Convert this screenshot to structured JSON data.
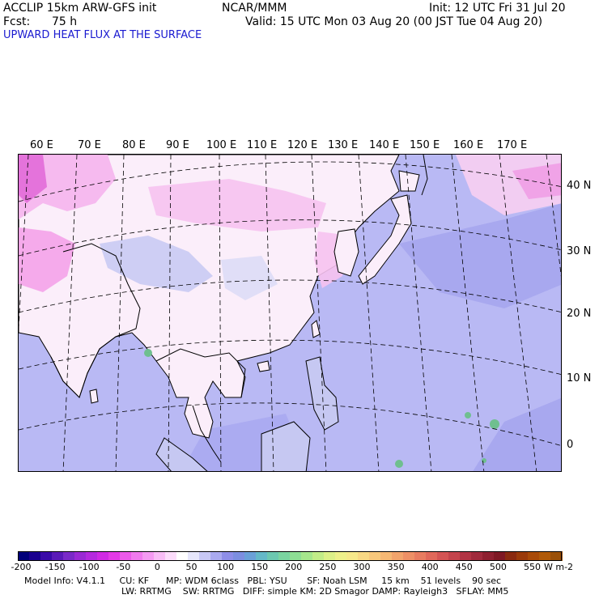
{
  "header": {
    "model": "ACCLIP 15km ARW-GFS init",
    "org": "NCAR/MMM",
    "init": "Init: 12 UTC Fri 31 Jul 20",
    "fcst_label": "Fcst:",
    "fcst_value": "75 h",
    "valid": "Valid: 15 UTC Mon 03 Aug 20 (00 JST Tue 04 Aug 20)",
    "field": "UPWARD HEAT FLUX AT THE SURFACE"
  },
  "map": {
    "longitude_labels": [
      "60 E",
      "70 E",
      "80 E",
      "90 E",
      "100 E",
      "110 E",
      "120 E",
      "130 E",
      "140 E",
      "150 E",
      "160 E",
      "170 E"
    ],
    "latitude_labels": [
      "40 N",
      "30 N",
      "20 N",
      "10 N",
      "0"
    ],
    "colors": {
      "land_white": "#ffffff",
      "land_pink": "#f7c8f0",
      "strong_pink": "#ee66dd",
      "ocean_lavender": "#b9b9f4",
      "ocean_blue": "#8f8fe6",
      "green_spot": "#6fbf8f"
    }
  },
  "colorbar": {
    "tick_labels": [
      "-200",
      "-150",
      "-100",
      "-50",
      "0",
      "50",
      "100",
      "150",
      "200",
      "250",
      "300",
      "350",
      "400",
      "450",
      "500",
      "550"
    ],
    "unit": "W m-2",
    "colors": [
      "#00007a",
      "#1a008f",
      "#3a0aa8",
      "#5a1ab8",
      "#7a2ac8",
      "#9a2ad4",
      "#b52ade",
      "#d02ae4",
      "#e43ae6",
      "#ec5aea",
      "#f07aee",
      "#f49af2",
      "#f8bcf6",
      "#fcdcfb",
      "#ffffff",
      "#e6e6fb",
      "#c8c8f5",
      "#aaaaf0",
      "#8e8ee8",
      "#7c8ee0",
      "#6aa0d8",
      "#64b8c8",
      "#6cc8b0",
      "#7ad4a0",
      "#8ede94",
      "#a6e68c",
      "#c2ec88",
      "#dcf088",
      "#eef08a",
      "#f6e88a",
      "#f8d884",
      "#f8c87c",
      "#f6b874",
      "#f2a46c",
      "#ee9066",
      "#e87c60",
      "#e0685a",
      "#d45454",
      "#c4444c",
      "#b23444",
      "#a02a3c",
      "#8e2030",
      "#7e1824",
      "#8a2a10",
      "#9a3a0a",
      "#a84a08",
      "#b05a08",
      "#9a5008"
    ]
  },
  "footer": {
    "line1": "Model Info: V4.1.1     CU: KF      MP: WDM 6class   PBL: YSU       SF: Noah LSM     15 km    51 levels    90 sec",
    "line2": "LW: RRTMG    SW: RRTMG   DIFF: simple KM: 2D Smagor DAMP: Rayleigh3   SFLAY: MM5"
  }
}
